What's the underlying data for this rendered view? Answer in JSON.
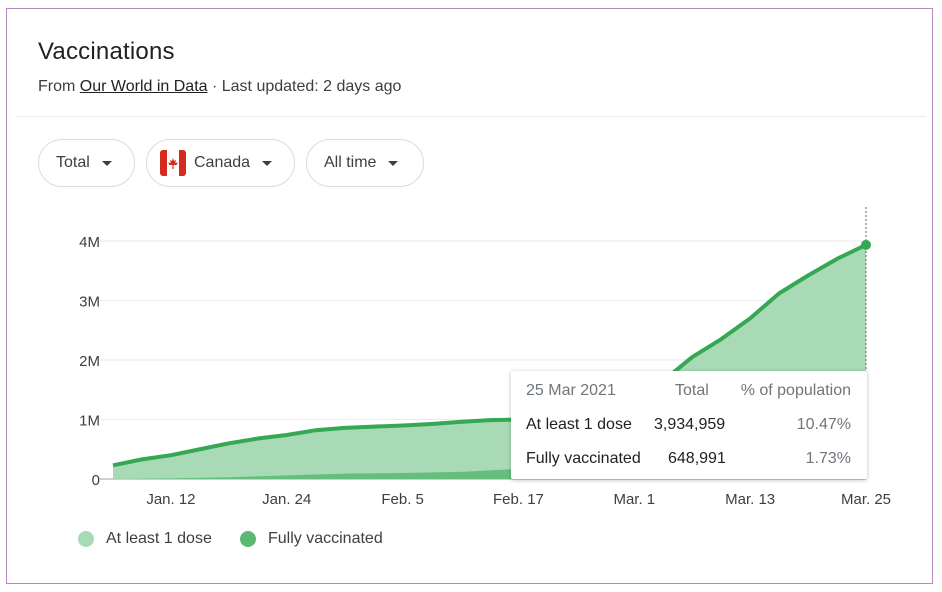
{
  "header": {
    "title": "Vaccinations",
    "from_label": "From",
    "source_link": "Our World in Data",
    "updated_text": " · Last updated: 2 days ago"
  },
  "filters": {
    "metric": "Total",
    "country": "Canada",
    "range": "All time"
  },
  "colors": {
    "at_least_one": "#a8dab5",
    "fully": "#5bb974",
    "line": "#34a853"
  },
  "chart_data": {
    "type": "area",
    "y_ticks": [
      "4M",
      "3M",
      "2M",
      "1M",
      "0"
    ],
    "x_ticks": [
      "Jan. 12",
      "Jan. 24",
      "Feb. 5",
      "Feb. 17",
      "Mar. 1",
      "Mar. 13",
      "Mar. 25"
    ],
    "ylim": [
      0,
      4000000
    ],
    "grid": true,
    "series": [
      {
        "name": "At least 1 dose",
        "x_day": [
          0,
          3,
          6,
          9,
          12,
          15,
          18,
          21,
          24,
          27,
          30,
          33,
          36,
          39,
          42,
          45,
          48,
          51,
          54,
          57,
          60,
          63,
          66,
          69,
          72,
          75,
          78
        ],
        "values": [
          230000,
          330000,
          400000,
          500000,
          600000,
          680000,
          740000,
          820000,
          860000,
          880000,
          900000,
          925000,
          960000,
          990000,
          1000000,
          1010000,
          1040000,
          1120000,
          1350000,
          1650000,
          2050000,
          2350000,
          2700000,
          3120000,
          3420000,
          3700000,
          3934959
        ]
      },
      {
        "name": "Fully vaccinated",
        "x_day": [
          0,
          6,
          12,
          18,
          24,
          30,
          36,
          42,
          48,
          54,
          60,
          66,
          72,
          78
        ],
        "values": [
          0,
          10000,
          30000,
          60000,
          90000,
          100000,
          120000,
          170000,
          250000,
          350000,
          430000,
          500000,
          580000,
          648991
        ]
      }
    ]
  },
  "tooltip": {
    "date": "25 Mar 2021",
    "col_total": "Total",
    "col_pct": "% of population",
    "rows": [
      {
        "label": "At least 1 dose",
        "total": "3,934,959",
        "pct": "10.47%"
      },
      {
        "label": "Fully vaccinated",
        "total": "648,991",
        "pct": "1.73%"
      }
    ]
  },
  "legend": [
    {
      "label": "At least 1 dose",
      "color": "#a8dab5"
    },
    {
      "label": "Fully vaccinated",
      "color": "#5bb974"
    }
  ]
}
